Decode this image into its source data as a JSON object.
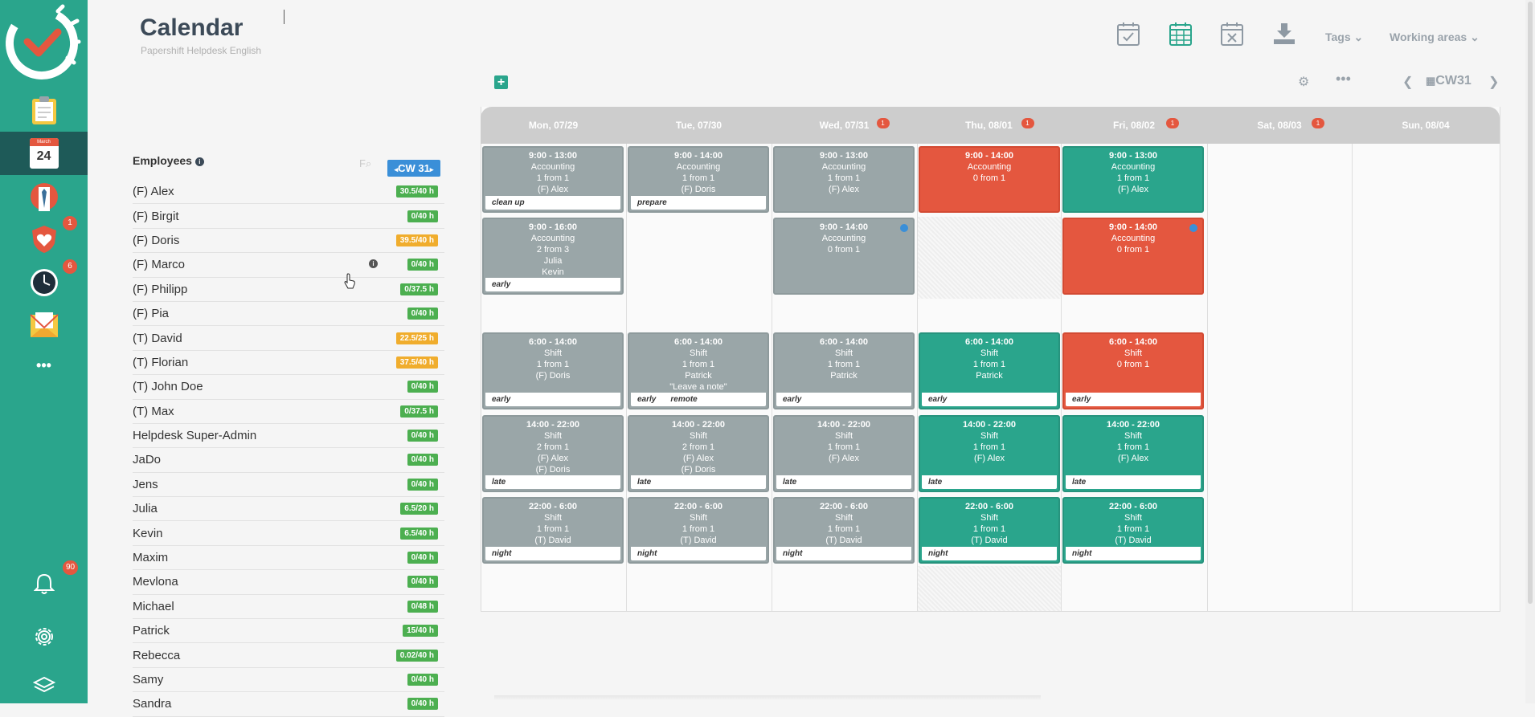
{
  "header": {
    "title": "Calendar",
    "subtitle": "Papershift Helpdesk English",
    "tags_label": "Tags",
    "working_areas_label": "Working areas"
  },
  "sidebar": {
    "calendar_month": "March",
    "calendar_day": "24",
    "absence_badge": "1",
    "time_badge": "6",
    "notifications_badge": "90",
    "more_label": "•••"
  },
  "employees": {
    "heading": "Employees",
    "search_label": "F",
    "week_badge": "CW 31",
    "list": [
      {
        "name": "(F) Alex",
        "hours": "30.5/40 h",
        "color": "green"
      },
      {
        "name": "(F) Birgit",
        "hours": "0/40 h",
        "color": "green"
      },
      {
        "name": "(F) Doris",
        "hours": "39.5/40 h",
        "color": "orange"
      },
      {
        "name": "(F) Marco",
        "hours": "0/40 h",
        "color": "green"
      },
      {
        "name": "(F) Philipp",
        "hours": "0/37.5 h",
        "color": "green"
      },
      {
        "name": "(F) Pia",
        "hours": "0/40 h",
        "color": "green"
      },
      {
        "name": "(T) David",
        "hours": "22.5/25 h",
        "color": "orange"
      },
      {
        "name": "(T) Florian",
        "hours": "37.5/40 h",
        "color": "orange"
      },
      {
        "name": "(T) John Doe",
        "hours": "0/40 h",
        "color": "green"
      },
      {
        "name": "(T) Max",
        "hours": "0/37.5 h",
        "color": "green"
      },
      {
        "name": "Helpdesk Super-Admin",
        "hours": "0/40 h",
        "color": "green"
      },
      {
        "name": "JaDo",
        "hours": "0/40 h",
        "color": "green"
      },
      {
        "name": "Jens",
        "hours": "0/40 h",
        "color": "green"
      },
      {
        "name": "Julia",
        "hours": "6.5/20 h",
        "color": "green"
      },
      {
        "name": "Kevin",
        "hours": "6.5/40 h",
        "color": "green"
      },
      {
        "name": "Maxim",
        "hours": "0/40 h",
        "color": "green"
      },
      {
        "name": "Mevlona",
        "hours": "0/40 h",
        "color": "green"
      },
      {
        "name": "Michael",
        "hours": "0/48 h",
        "color": "green"
      },
      {
        "name": "Patrick",
        "hours": "15/40 h",
        "color": "green"
      },
      {
        "name": "Rebecca",
        "hours": "0.02/40 h",
        "color": "green"
      },
      {
        "name": "Samy",
        "hours": "0/40 h",
        "color": "green"
      },
      {
        "name": "Sandra",
        "hours": "0/40 h",
        "color": "green"
      }
    ]
  },
  "calendar": {
    "week_label": "CW31",
    "days": [
      {
        "label": "Mon, 07/29",
        "badge": ""
      },
      {
        "label": "Tue, 07/30",
        "badge": ""
      },
      {
        "label": "Wed, 07/31",
        "badge": "1"
      },
      {
        "label": "Thu, 08/01",
        "badge": "1"
      },
      {
        "label": "Fri, 08/02",
        "badge": "1"
      },
      {
        "label": "Sat, 08/03",
        "badge": "1"
      },
      {
        "label": "Sun, 08/04",
        "badge": ""
      }
    ],
    "shifts": [
      {
        "day": 0,
        "row": 0,
        "color": "gray",
        "lines": [
          "9:00 - 13:00",
          "Accounting",
          "1 from 1",
          "(F) Alex"
        ],
        "tags": [
          "clean up"
        ]
      },
      {
        "day": 1,
        "row": 0,
        "color": "gray",
        "lines": [
          "9:00 - 14:00",
          "Accounting",
          "1 from 1",
          "(F) Doris"
        ],
        "tags": [
          "prepare"
        ]
      },
      {
        "day": 2,
        "row": 0,
        "color": "gray",
        "lines": [
          "9:00 - 13:00",
          "Accounting",
          "1 from 1",
          "(F) Alex"
        ],
        "tags": []
      },
      {
        "day": 3,
        "row": 0,
        "color": "red",
        "lines": [
          "9:00 - 14:00",
          "Accounting",
          "0 from 1"
        ],
        "tags": []
      },
      {
        "day": 4,
        "row": 0,
        "color": "green",
        "lines": [
          "9:00 - 13:00",
          "Accounting",
          "1 from 1",
          "(F) Alex"
        ],
        "tags": []
      },
      {
        "day": 0,
        "row": 1,
        "color": "gray",
        "lines": [
          "9:00 - 16:00",
          "Accounting",
          "2 from 3",
          "Julia",
          "Kevin"
        ],
        "tags": [
          "early"
        ]
      },
      {
        "day": 2,
        "row": 1,
        "color": "gray",
        "lines": [
          "9:00 - 14:00",
          "Accounting",
          "0 from 1"
        ],
        "tags": [],
        "dot": true
      },
      {
        "day": 4,
        "row": 1,
        "color": "red",
        "lines": [
          "9:00 - 14:00",
          "Accounting",
          "0 from 1"
        ],
        "tags": [],
        "dot": true
      },
      {
        "day": 0,
        "row": 2,
        "color": "gray",
        "lines": [
          "6:00 - 14:00",
          "Shift",
          "1 from 1",
          "(F) Doris"
        ],
        "tags": [
          "early"
        ]
      },
      {
        "day": 1,
        "row": 2,
        "color": "gray",
        "lines": [
          "6:00 - 14:00",
          "Shift",
          "1 from 1",
          "Patrick",
          "\"Leave a note\""
        ],
        "tags": [
          "early",
          "remote"
        ]
      },
      {
        "day": 2,
        "row": 2,
        "color": "gray",
        "lines": [
          "6:00 - 14:00",
          "Shift",
          "1 from 1",
          "Patrick"
        ],
        "tags": [
          "early"
        ]
      },
      {
        "day": 3,
        "row": 2,
        "color": "green",
        "lines": [
          "6:00 - 14:00",
          "Shift",
          "1 from 1",
          "Patrick"
        ],
        "tags": [
          "early"
        ]
      },
      {
        "day": 4,
        "row": 2,
        "color": "red",
        "lines": [
          "6:00 - 14:00",
          "Shift",
          "0 from 1"
        ],
        "tags": [
          "early"
        ]
      },
      {
        "day": 0,
        "row": 3,
        "color": "gray",
        "lines": [
          "14:00 - 22:00",
          "Shift",
          "2 from 1",
          "(F) Alex",
          "(F) Doris"
        ],
        "tags": [
          "late"
        ]
      },
      {
        "day": 1,
        "row": 3,
        "color": "gray",
        "lines": [
          "14:00 - 22:00",
          "Shift",
          "2 from 1",
          "(F) Alex",
          "(F) Doris"
        ],
        "tags": [
          "late"
        ]
      },
      {
        "day": 2,
        "row": 3,
        "color": "gray",
        "lines": [
          "14:00 - 22:00",
          "Shift",
          "1 from 1",
          "(F) Alex"
        ],
        "tags": [
          "late"
        ]
      },
      {
        "day": 3,
        "row": 3,
        "color": "green",
        "lines": [
          "14:00 - 22:00",
          "Shift",
          "1 from 1",
          "(F) Alex"
        ],
        "tags": [
          "late"
        ]
      },
      {
        "day": 4,
        "row": 3,
        "color": "green",
        "lines": [
          "14:00 - 22:00",
          "Shift",
          "1 from 1",
          "(F) Alex"
        ],
        "tags": [
          "late"
        ]
      },
      {
        "day": 0,
        "row": 4,
        "color": "gray",
        "lines": [
          "22:00 - 6:00",
          "Shift",
          "1 from 1",
          "(T) David"
        ],
        "tags": [
          "night"
        ]
      },
      {
        "day": 1,
        "row": 4,
        "color": "gray",
        "lines": [
          "22:00 - 6:00",
          "Shift",
          "1 from 1",
          "(T) David"
        ],
        "tags": [
          "night"
        ]
      },
      {
        "day": 2,
        "row": 4,
        "color": "gray",
        "lines": [
          "22:00 - 6:00",
          "Shift",
          "1 from 1",
          "(T) David"
        ],
        "tags": [
          "night"
        ]
      },
      {
        "day": 3,
        "row": 4,
        "color": "green",
        "lines": [
          "22:00 - 6:00",
          "Shift",
          "1 from 1",
          "(T) David"
        ],
        "tags": [
          "night"
        ]
      },
      {
        "day": 4,
        "row": 4,
        "color": "green",
        "lines": [
          "22:00 - 6:00",
          "Shift",
          "1 from 1",
          "(T) David"
        ],
        "tags": [
          "night"
        ]
      }
    ]
  },
  "colors": {
    "sidebar": "#2aa58c",
    "sidebar_active": "#1e5a58",
    "shift_gray": "#9aa6a8",
    "shift_green": "#2aa58c",
    "shift_red": "#e4573f",
    "badge_blue": "#3a8fd8"
  }
}
